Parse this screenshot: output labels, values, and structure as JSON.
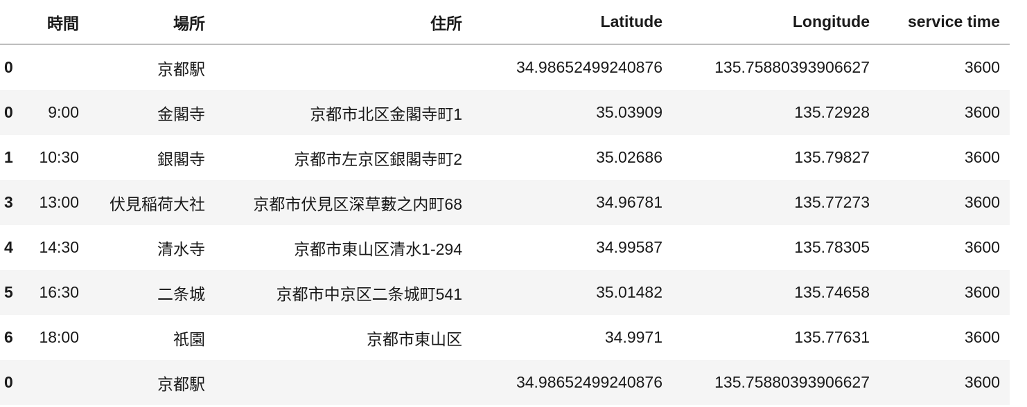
{
  "columns": [
    "",
    "時間",
    "場所",
    "住所",
    "Latitude",
    "Longitude",
    "service time"
  ],
  "rows": [
    {
      "index": "0",
      "time": "",
      "place": "京都駅",
      "address": "",
      "lat": "34.98652499240876",
      "lon": "135.75880393906627",
      "service": "3600"
    },
    {
      "index": "0",
      "time": "9:00",
      "place": "金閣寺",
      "address": "京都市北区金閣寺町1",
      "lat": "35.03909",
      "lon": "135.72928",
      "service": "3600"
    },
    {
      "index": "1",
      "time": "10:30",
      "place": "銀閣寺",
      "address": "京都市左京区銀閣寺町2",
      "lat": "35.02686",
      "lon": "135.79827",
      "service": "3600"
    },
    {
      "index": "3",
      "time": "13:00",
      "place": "伏見稲荷大社",
      "address": "京都市伏見区深草藪之内町68",
      "lat": "34.96781",
      "lon": "135.77273",
      "service": "3600"
    },
    {
      "index": "4",
      "time": "14:30",
      "place": "清水寺",
      "address": "京都市東山区清水1-294",
      "lat": "34.99587",
      "lon": "135.78305",
      "service": "3600"
    },
    {
      "index": "5",
      "time": "16:30",
      "place": "二条城",
      "address": "京都市中京区二条城町541",
      "lat": "35.01482",
      "lon": "135.74658",
      "service": "3600"
    },
    {
      "index": "6",
      "time": "18:00",
      "place": "祇園",
      "address": "京都市東山区",
      "lat": "34.9971",
      "lon": "135.77631",
      "service": "3600"
    },
    {
      "index": "0",
      "time": "",
      "place": "京都駅",
      "address": "",
      "lat": "34.98652499240876",
      "lon": "135.75880393906627",
      "service": "3600"
    }
  ]
}
